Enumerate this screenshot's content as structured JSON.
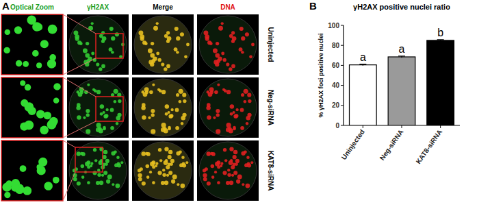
{
  "panel_a": {
    "label": "A",
    "columns": [
      "Optical Zoom",
      "γH2AX",
      "Merge",
      "DNA"
    ],
    "rows": [
      "Uninjected",
      "Neg-siRNA",
      "KAT8-siRNA"
    ]
  },
  "panel_b": {
    "label": "B"
  },
  "chart_data": {
    "type": "bar",
    "title": "γH2AX positive nuclei ratio",
    "y_label": "% γH2AX foci positive nuclei",
    "categories": [
      "Uninjected",
      "Neg-siRNA",
      "KAT8-siRNA"
    ],
    "values": [
      60.5,
      68.5,
      85
    ],
    "errors": [
      0.8,
      0.8,
      0.7
    ],
    "annotations": [
      "a",
      "a",
      "b"
    ],
    "colors": [
      "#ffffff",
      "#9a9a9a",
      "#000000"
    ],
    "ylim": [
      0,
      100
    ],
    "yticks": [
      0,
      20,
      40,
      60,
      80,
      100
    ],
    "grid": false
  }
}
